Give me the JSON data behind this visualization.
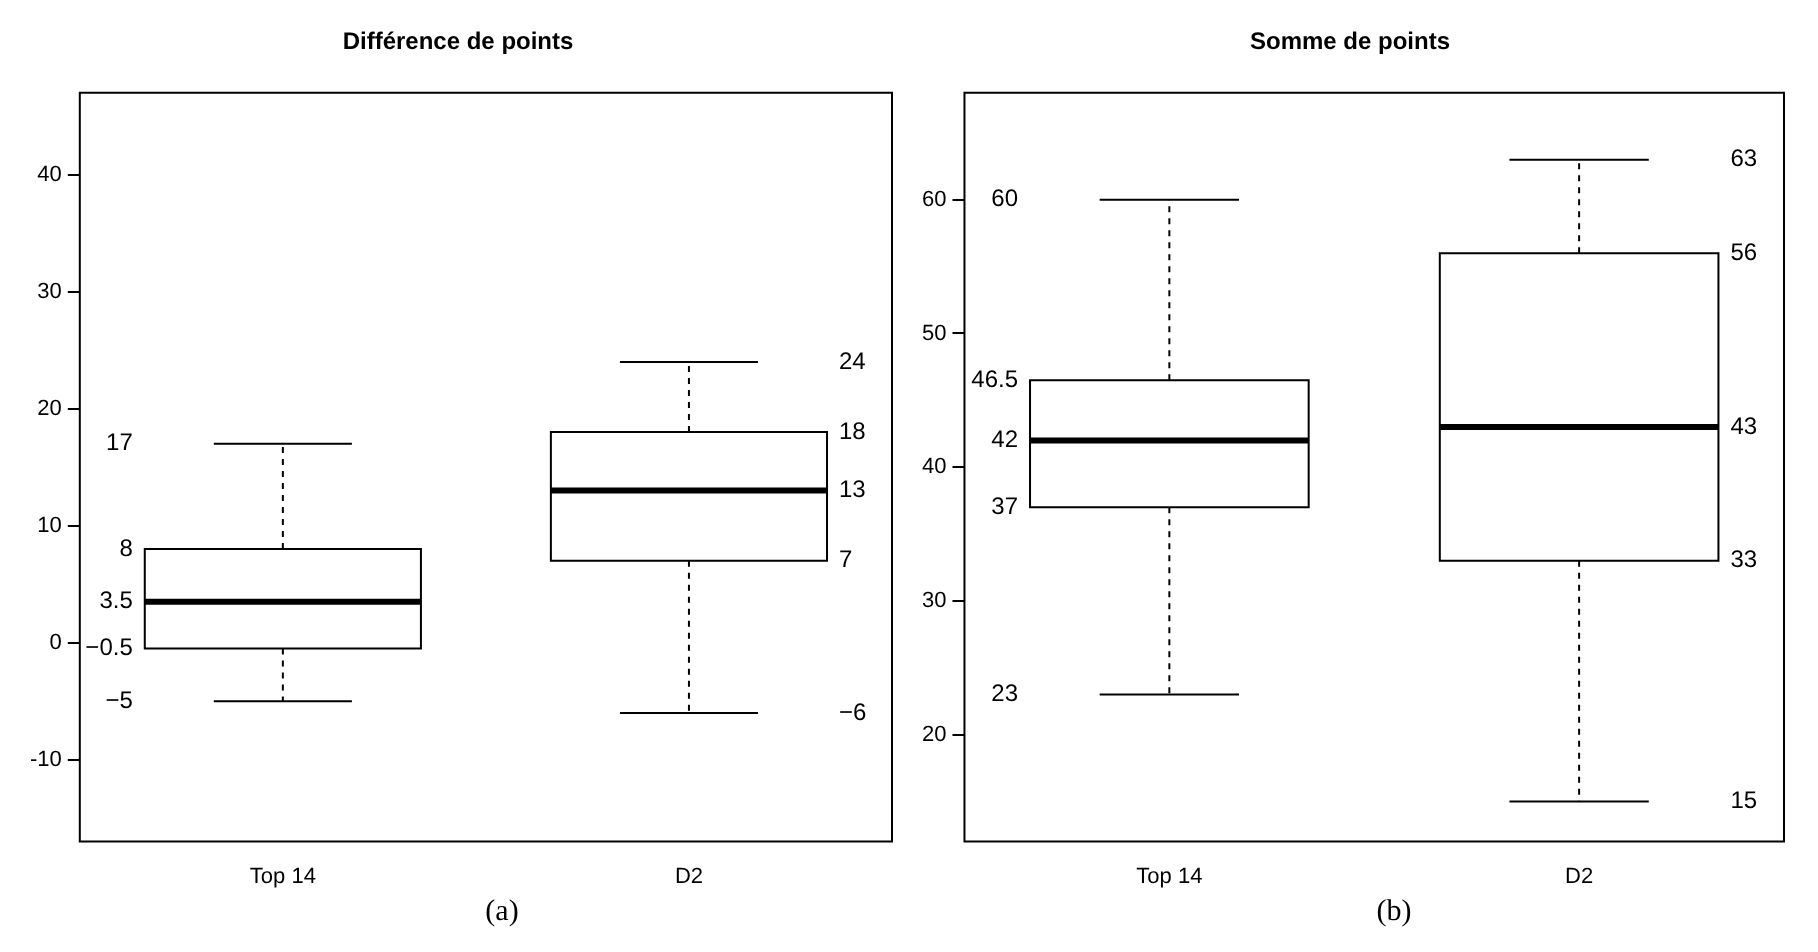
{
  "chart_data": [
    {
      "type": "box",
      "title": "Différence de points",
      "categories": [
        "Top 14",
        "D2"
      ],
      "boxes": [
        {
          "low": -5,
          "q1": -0.5,
          "median": 3.5,
          "q3": 8,
          "high": 17
        },
        {
          "low": -6,
          "q1": 7,
          "median": 13,
          "q3": 18,
          "high": 24
        }
      ],
      "ylim": [
        -17,
        47
      ],
      "yticks": [
        -10,
        0,
        10,
        20,
        30,
        40
      ],
      "annotations": [
        "17",
        "8",
        "3.5",
        "−0.5",
        "−5",
        "24",
        "18",
        "13",
        "7",
        "−6",
        "(a)"
      ]
    },
    {
      "type": "box",
      "title": "Somme de points",
      "categories": [
        "Top 14",
        "D2"
      ],
      "boxes": [
        {
          "low": 23,
          "q1": 37,
          "median": 42,
          "q3": 46.5,
          "high": 60
        },
        {
          "low": 15,
          "q1": 33,
          "median": 43,
          "q3": 56,
          "high": 63
        }
      ],
      "ylim": [
        12,
        68
      ],
      "yticks": [
        20,
        30,
        40,
        50,
        60
      ],
      "annotations": [
        "60",
        "46.5",
        "42",
        "37",
        "23",
        "63",
        "56",
        "43",
        "33",
        "15",
        "(b)"
      ]
    }
  ]
}
